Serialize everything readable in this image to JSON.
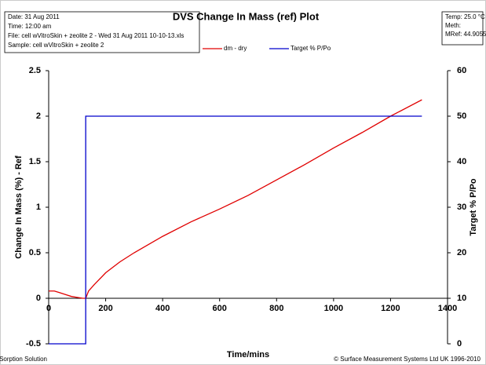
{
  "chart_data": {
    "type": "line",
    "title": "DVS Change In Mass (ref) Plot",
    "info_box": [
      "Date:  31 Aug 2011",
      "Time:  12:00 am",
      "File:  cell wVitroSkin + zeolite 2 - Wed 31 Aug 2011 10-10-13.xls",
      "Sample:  cell wVitroSkin + zeolite 2"
    ],
    "meta_box": [
      "Temp:  25.0 °C",
      "Meth:",
      "MRef:  44.9055"
    ],
    "footer_left": "DVS - The Sorption Solution",
    "footer_right": "© Surface Measurement Systems Ltd UK 1996-2010",
    "xlabel": "Time/mins",
    "ylabel": "Change In Mass (%) - Ref",
    "y2label": "Target % P/Po",
    "xlim": [
      0,
      1400
    ],
    "xticks": [
      0,
      200,
      400,
      600,
      800,
      1000,
      1200,
      1400
    ],
    "ylim": [
      -0.5,
      2.5
    ],
    "yticks": [
      -0.5,
      0,
      0.5,
      1,
      1.5,
      2,
      2.5
    ],
    "y2lim": [
      0,
      60
    ],
    "y2ticks": [
      0,
      10,
      20,
      30,
      40,
      50,
      60
    ],
    "grid": false,
    "series": [
      {
        "name": "dm - dry",
        "color": "#e00000",
        "x": [
          0,
          20,
          40,
          60,
          80,
          100,
          120,
          130,
          140,
          160,
          200,
          250,
          300,
          400,
          500,
          600,
          700,
          800,
          900,
          1000,
          1100,
          1200,
          1310
        ],
        "values": [
          0.08,
          0.08,
          0.06,
          0.04,
          0.02,
          0.01,
          0.0,
          0.0,
          0.08,
          0.15,
          0.28,
          0.4,
          0.5,
          0.68,
          0.84,
          0.98,
          1.13,
          1.3,
          1.47,
          1.65,
          1.82,
          2.0,
          2.18
        ]
      },
      {
        "name": "Target % P/Po",
        "color": "#0000cc",
        "axis": "y2",
        "x": [
          0,
          130,
          130,
          1310
        ],
        "values": [
          0,
          0,
          50,
          50
        ]
      }
    ]
  }
}
